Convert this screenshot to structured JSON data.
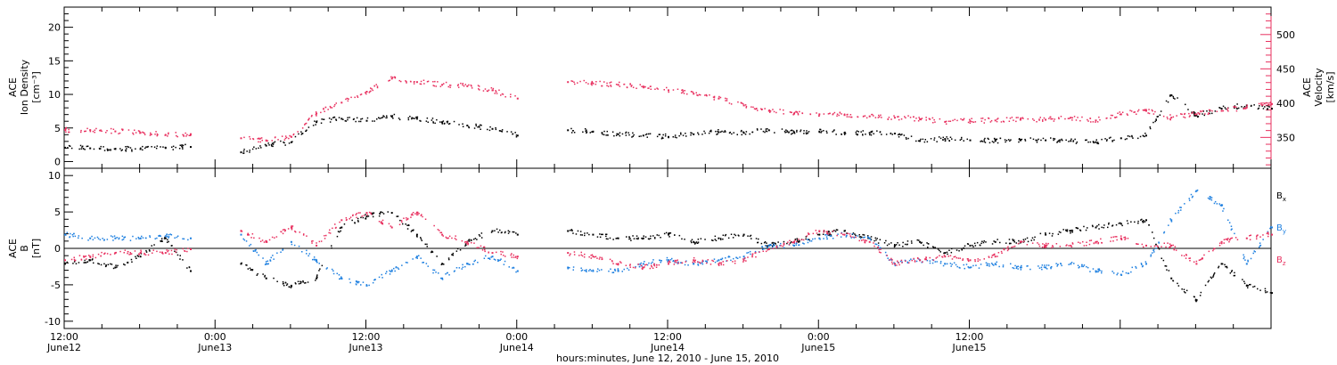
{
  "chart_data": [
    {
      "type": "scatter",
      "panel": "top",
      "ylabel_left": [
        "ACE",
        "Ion Density",
        "[cm⁻³]"
      ],
      "ylabel_right": [
        "ACE",
        "Velocity",
        "[km/s]"
      ],
      "ylim_left": [
        -1,
        23
      ],
      "ylim_right": [
        305,
        540
      ],
      "yticks_left": [
        0,
        5,
        10,
        15,
        20
      ],
      "yticks_right": [
        350,
        400,
        450,
        500
      ],
      "right_axis_color": "#e8305f",
      "series": [
        {
          "axis": "left",
          "color": "#000000",
          "x": [
            0,
            2,
            4,
            6,
            8,
            10,
            14,
            16,
            18,
            20,
            22,
            24,
            26,
            28,
            30,
            32,
            34,
            36,
            40,
            42,
            44,
            46,
            48,
            50,
            52,
            54,
            56,
            58,
            60,
            62,
            64,
            66,
            68,
            70,
            72,
            74,
            76,
            78,
            80,
            82,
            84,
            86,
            88,
            90,
            92,
            94,
            96
          ],
          "values": [
            2.2,
            2.1,
            2.0,
            2.0,
            2.2,
            2.3,
            1.5,
            2.5,
            3.0,
            6.0,
            6.5,
            6.2,
            6.8,
            6.5,
            6.0,
            5.5,
            5.0,
            4.0,
            4.8,
            4.6,
            4.2,
            4.0,
            3.8,
            4.2,
            4.5,
            4.4,
            4.8,
            4.5,
            4.6,
            4.4,
            4.4,
            4.3,
            3.2,
            3.5,
            3.3,
            3.2,
            3.3,
            3.3,
            3.2,
            3.0,
            3.6,
            4.0,
            10.0,
            7.0,
            8.0,
            8.5,
            8.0
          ]
        },
        {
          "axis": "right",
          "color": "#e8305f",
          "x": [
            0,
            2,
            4,
            6,
            8,
            10,
            14,
            16,
            18,
            20,
            22,
            24,
            26,
            28,
            30,
            32,
            34,
            36,
            40,
            42,
            44,
            46,
            48,
            50,
            52,
            54,
            56,
            58,
            60,
            62,
            64,
            66,
            68,
            70,
            72,
            74,
            76,
            78,
            80,
            82,
            84,
            86,
            88,
            90,
            92,
            94,
            96
          ],
          "values": [
            362,
            362,
            360,
            358,
            355,
            356,
            350,
            347,
            352,
            386,
            402,
            418,
            437,
            432,
            428,
            426,
            420,
            408,
            432,
            430,
            428,
            425,
            420,
            415,
            408,
            398,
            390,
            386,
            385,
            384,
            382,
            380,
            378,
            374,
            375,
            376,
            377,
            377,
            380,
            376,
            385,
            390,
            380,
            385,
            390,
            395,
            400
          ]
        }
      ]
    },
    {
      "type": "scatter",
      "panel": "bottom",
      "ylabel": [
        "ACE",
        "B",
        "[nT]"
      ],
      "ylim": [
        -11,
        11
      ],
      "yticks": [
        -10,
        -5,
        0,
        5,
        10
      ],
      "zero_line": true,
      "legend": [
        {
          "base": "B",
          "sub": "x",
          "color": "#000000"
        },
        {
          "base": "B",
          "sub": "y",
          "color": "#1f80e0"
        },
        {
          "base": "B",
          "sub": "z",
          "color": "#e8305f"
        }
      ],
      "series": [
        {
          "color": "#000000",
          "x": [
            0,
            2,
            4,
            6,
            8,
            10,
            14,
            16,
            18,
            20,
            22,
            24,
            26,
            28,
            30,
            32,
            34,
            36,
            40,
            42,
            44,
            46,
            48,
            50,
            52,
            54,
            56,
            58,
            60,
            62,
            64,
            66,
            68,
            70,
            72,
            74,
            76,
            78,
            80,
            82,
            84,
            86,
            88,
            90,
            92,
            94,
            96
          ],
          "values": [
            -2.0,
            -1.5,
            -2.5,
            -1.0,
            1.5,
            -3.0,
            -2.0,
            -4.0,
            -5.0,
            -4.0,
            3.0,
            4.5,
            5.0,
            2.0,
            -2.0,
            1.0,
            2.5,
            2.0,
            2.5,
            2.0,
            1.5,
            1.5,
            2.0,
            1.0,
            1.5,
            2.0,
            0.5,
            1.0,
            2.0,
            2.5,
            1.5,
            0.5,
            1.0,
            -0.5,
            0.5,
            1.0,
            1.0,
            2.0,
            2.5,
            3.0,
            3.5,
            4.0,
            -4.0,
            -7.0,
            -2.0,
            -5.0,
            -6.0
          ]
        },
        {
          "color": "#1f80e0",
          "x": [
            0,
            2,
            4,
            6,
            8,
            10,
            14,
            16,
            18,
            20,
            22,
            24,
            26,
            28,
            30,
            32,
            34,
            36,
            40,
            42,
            44,
            46,
            48,
            50,
            52,
            54,
            56,
            58,
            60,
            62,
            64,
            66,
            68,
            70,
            72,
            74,
            76,
            78,
            80,
            82,
            84,
            86,
            88,
            90,
            92,
            94,
            96
          ],
          "values": [
            2.0,
            1.5,
            1.5,
            1.5,
            1.8,
            1.5,
            2.0,
            -2.0,
            1.0,
            -1.5,
            -4.0,
            -5.0,
            -3.0,
            -1.0,
            -4.0,
            -2.0,
            -1.0,
            -3.0,
            -2.5,
            -3.0,
            -3.0,
            -2.0,
            -1.5,
            -2.0,
            -1.5,
            -1.0,
            0.5,
            0.5,
            1.5,
            2.0,
            1.5,
            -2.0,
            -1.5,
            -2.0,
            -2.5,
            -2.0,
            -2.5,
            -2.5,
            -2.0,
            -3.0,
            -3.5,
            -2.0,
            4.0,
            8.0,
            6.0,
            -2.0,
            3.0
          ]
        },
        {
          "color": "#e8305f",
          "x": [
            0,
            2,
            4,
            6,
            8,
            10,
            14,
            16,
            18,
            20,
            22,
            24,
            26,
            28,
            30,
            32,
            34,
            36,
            40,
            42,
            44,
            46,
            48,
            50,
            52,
            54,
            56,
            58,
            60,
            62,
            64,
            66,
            68,
            70,
            72,
            74,
            76,
            78,
            80,
            82,
            84,
            86,
            88,
            90,
            92,
            94,
            96
          ],
          "values": [
            -1.5,
            -1.0,
            -0.5,
            -0.5,
            -0.5,
            0.0,
            2.5,
            1.0,
            3.0,
            0.5,
            4.0,
            5.0,
            3.0,
            5.0,
            2.0,
            1.0,
            -0.5,
            -1.0,
            -0.5,
            -1.0,
            -2.0,
            -2.5,
            -2.0,
            -1.5,
            -2.0,
            -1.5,
            0.0,
            1.0,
            2.5,
            2.0,
            1.0,
            -2.0,
            -1.5,
            -1.0,
            -1.5,
            -1.0,
            1.0,
            0.5,
            0.5,
            1.0,
            1.5,
            0.5,
            0.5,
            -2.0,
            1.0,
            1.5,
            2.0
          ]
        }
      ]
    }
  ],
  "x_axis": {
    "xlim": [
      0,
      96
    ],
    "ticks": [
      {
        "x": 0,
        "time": "12:00",
        "date": "June12"
      },
      {
        "x": 12,
        "time": "0:00",
        "date": "June13"
      },
      {
        "x": 24,
        "time": "12:00",
        "date": "June13"
      },
      {
        "x": 36,
        "time": "0:00",
        "date": "June14"
      },
      {
        "x": 48,
        "time": "12:00",
        "date": "June14"
      },
      {
        "x": 60,
        "time": "0:00",
        "date": "June15"
      },
      {
        "x": 72,
        "time": "12:00",
        "date": "June15"
      }
    ],
    "label": "hours:minutes, June 12, 2010 - June 15, 2010"
  }
}
